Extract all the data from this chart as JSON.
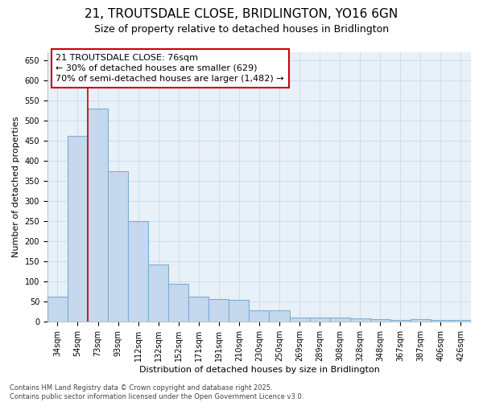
{
  "title_line1": "21, TROUTSDALE CLOSE, BRIDLINGTON, YO16 6GN",
  "title_line2": "Size of property relative to detached houses in Bridlington",
  "xlabel": "Distribution of detached houses by size in Bridlington",
  "ylabel": "Number of detached properties",
  "categories": [
    "34sqm",
    "54sqm",
    "73sqm",
    "93sqm",
    "112sqm",
    "132sqm",
    "152sqm",
    "171sqm",
    "191sqm",
    "210sqm",
    "230sqm",
    "250sqm",
    "269sqm",
    "289sqm",
    "308sqm",
    "328sqm",
    "348sqm",
    "367sqm",
    "387sqm",
    "406sqm",
    "426sqm"
  ],
  "values": [
    62,
    463,
    530,
    375,
    250,
    143,
    94,
    63,
    57,
    55,
    28,
    28,
    10,
    11,
    11,
    8,
    7,
    5,
    7,
    5,
    4
  ],
  "bar_color": "#c5d8ed",
  "bar_edge_color": "#7bafd4",
  "vline_color": "#cc0000",
  "vline_x": 1.5,
  "annotation_text_line1": "21 TROUTSDALE CLOSE: 76sqm",
  "annotation_text_line2": "← 30% of detached houses are smaller (629)",
  "annotation_text_line3": "70% of semi-detached houses are larger (1,482) →",
  "annotation_box_color": "#cc0000",
  "annotation_bg_color": "#ffffff",
  "grid_color": "#ccdaeb",
  "bg_color": "#ffffff",
  "plot_bg_color": "#e8f0f8",
  "ylim": [
    0,
    670
  ],
  "yticks": [
    0,
    50,
    100,
    150,
    200,
    250,
    300,
    350,
    400,
    450,
    500,
    550,
    600,
    650
  ],
  "title_fontsize": 11,
  "subtitle_fontsize": 9,
  "label_fontsize": 8,
  "tick_fontsize": 7,
  "annotation_fontsize": 8,
  "footer_fontsize": 6,
  "footer_line1": "Contains HM Land Registry data © Crown copyright and database right 2025.",
  "footer_line2": "Contains public sector information licensed under the Open Government Licence v3.0."
}
